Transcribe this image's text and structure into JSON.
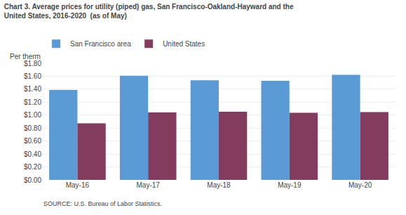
{
  "chart_data": {
    "type": "bar",
    "title": "Chart 3. Average prices for utility (piped) gas, San Francisco-Oakland-Hayward and the",
    "subtitle": "United States, 2016-2020  (as of May)",
    "ylabel": "Per therm",
    "categories": [
      "May-16",
      "May-17",
      "May-18",
      "May-19",
      "May-20"
    ],
    "series": [
      {
        "name": "San Francisco area",
        "color": "#5B9BD5",
        "values": [
          1.387,
          1.607,
          1.537,
          1.53,
          1.62
        ]
      },
      {
        "name": "United States",
        "color": "#833C5D",
        "values": [
          0.872,
          1.04,
          1.051,
          1.036,
          1.047
        ]
      }
    ],
    "ylim": [
      0.0,
      1.8
    ],
    "yticks": [
      {
        "value": 0.0,
        "label": "$0.00"
      },
      {
        "value": 0.2,
        "label": "$0.20"
      },
      {
        "value": 0.4,
        "label": "$0.40"
      },
      {
        "value": 0.6,
        "label": "$0.60"
      },
      {
        "value": 0.8,
        "label": "$0.80"
      },
      {
        "value": 1.0,
        "label": "$1.00"
      },
      {
        "value": 1.2,
        "label": "$1.20"
      },
      {
        "value": 1.4,
        "label": "$1.40"
      },
      {
        "value": 1.6,
        "label": "$1.60"
      },
      {
        "value": 1.8,
        "label": "$1.80"
      }
    ],
    "grid": true,
    "legend": "top left",
    "annotations": [
      "SOURCE: U.S. Bureau of Labor Statistics."
    ]
  }
}
